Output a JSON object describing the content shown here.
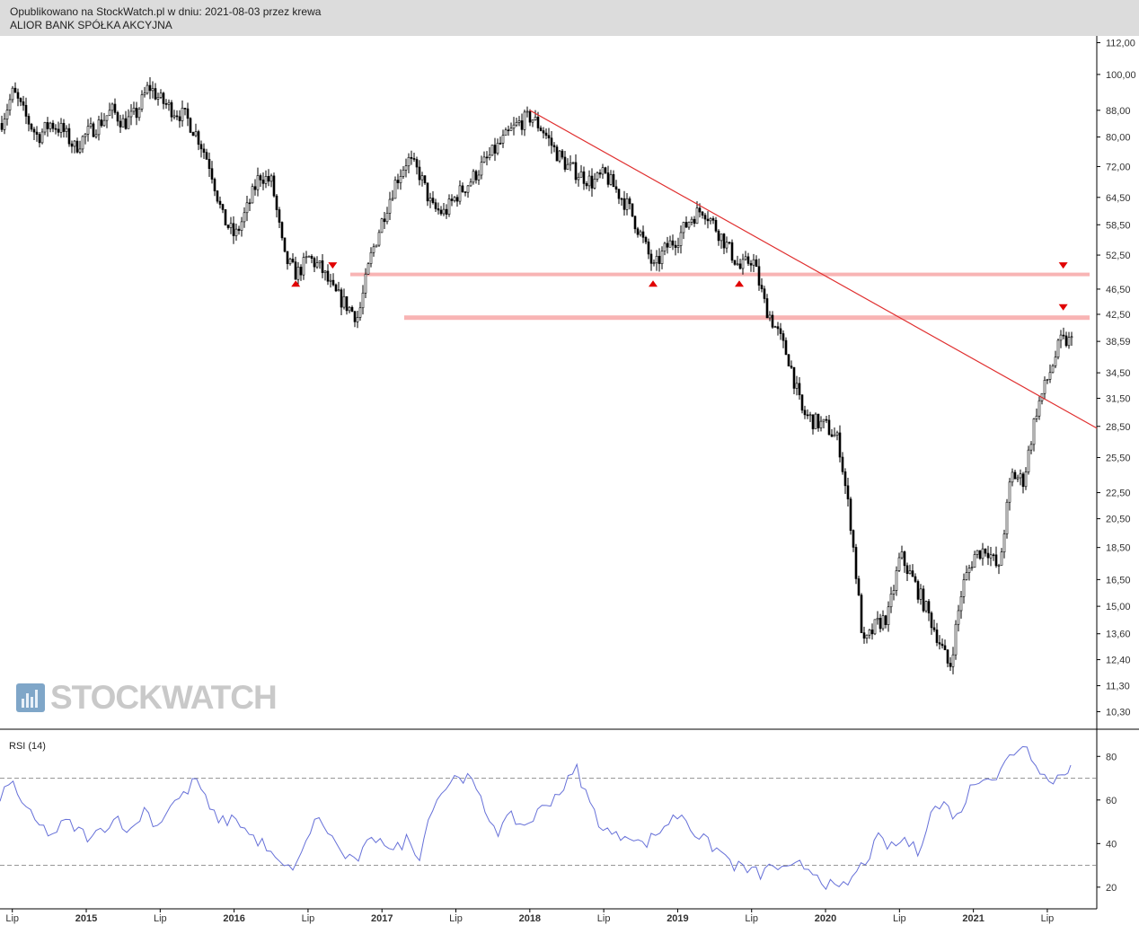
{
  "header": {
    "published": "Opublikowano na StockWatch.pl w dniu: 2021-08-03 przez krewa",
    "title": "ALIOR BANK SPÓŁKA AKCYJNA"
  },
  "logo": {
    "text": "STOCKWATCH",
    "icon": "bar-chart-icon"
  },
  "colors": {
    "trendline": "#e03030",
    "level": "#f8b4b4",
    "marker": "#e00000",
    "rsi": "#6670d8",
    "candle": "#000000"
  },
  "chart_data": [
    {
      "type": "candlestick",
      "scale": "log",
      "ylim": [
        9.8,
        114
      ],
      "y_ticks": [
        "112,00",
        "100,00",
        "88,00",
        "80,00",
        "72,00",
        "64,50",
        "58,50",
        "52,50",
        "46,50",
        "42,50",
        "38,59",
        "34,50",
        "31,50",
        "28,50",
        "25,50",
        "22,50",
        "20,50",
        "18,50",
        "16,50",
        "15,00",
        "13,60",
        "12,40",
        "11,30",
        "10,30"
      ],
      "x_ticks": [
        "Lip",
        "2015",
        "Lip",
        "2016",
        "Lip",
        "2017",
        "Lip",
        "2018",
        "Lip",
        "2019",
        "Lip",
        "2020",
        "Lip",
        "2021",
        "Lip"
      ],
      "weekly_close_path": [
        [
          "2014-06",
          84
        ],
        [
          "2014-07",
          94
        ],
        [
          "2014-08",
          86
        ],
        [
          "2014-09",
          80
        ],
        [
          "2014-10",
          84
        ],
        [
          "2014-11",
          82
        ],
        [
          "2014-12",
          77
        ],
        [
          "2015-01",
          81
        ],
        [
          "2015-02",
          84
        ],
        [
          "2015-03",
          88
        ],
        [
          "2015-04",
          84
        ],
        [
          "2015-05",
          87
        ],
        [
          "2015-06",
          96
        ],
        [
          "2015-07",
          91
        ],
        [
          "2015-08",
          88
        ],
        [
          "2015-09",
          86
        ],
        [
          "2015-10",
          80
        ],
        [
          "2015-11",
          72
        ],
        [
          "2015-12",
          60
        ],
        [
          "2016-01",
          56
        ],
        [
          "2016-02",
          62
        ],
        [
          "2016-03",
          70
        ],
        [
          "2016-04",
          68
        ],
        [
          "2016-05",
          52
        ],
        [
          "2016-06",
          49
        ],
        [
          "2016-07",
          52
        ],
        [
          "2016-08",
          50
        ],
        [
          "2016-09",
          46
        ],
        [
          "2016-10",
          44
        ],
        [
          "2016-11",
          42
        ],
        [
          "2016-12",
          52
        ],
        [
          "2017-01",
          60
        ],
        [
          "2017-02",
          68
        ],
        [
          "2017-03",
          74
        ],
        [
          "2017-04",
          70
        ],
        [
          "2017-05",
          62
        ],
        [
          "2017-06",
          61
        ],
        [
          "2017-07",
          65
        ],
        [
          "2017-08",
          68
        ],
        [
          "2017-09",
          72
        ],
        [
          "2017-10",
          76
        ],
        [
          "2017-11",
          80
        ],
        [
          "2017-12",
          84
        ],
        [
          "2018-01",
          86
        ],
        [
          "2018-02",
          82
        ],
        [
          "2018-03",
          76
        ],
        [
          "2018-04",
          72
        ],
        [
          "2018-05",
          70
        ],
        [
          "2018-06",
          68
        ],
        [
          "2018-07",
          70
        ],
        [
          "2018-08",
          66
        ],
        [
          "2018-09",
          62
        ],
        [
          "2018-10",
          56
        ],
        [
          "2018-11",
          50
        ],
        [
          "2018-12",
          54
        ],
        [
          "2019-01",
          56
        ],
        [
          "2019-02",
          60
        ],
        [
          "2019-03",
          62
        ],
        [
          "2019-04",
          58
        ],
        [
          "2019-05",
          54
        ],
        [
          "2019-06",
          50
        ],
        [
          "2019-07",
          52
        ],
        [
          "2019-08",
          44
        ],
        [
          "2019-09",
          40
        ],
        [
          "2019-10",
          36
        ],
        [
          "2019-11",
          30
        ],
        [
          "2019-12",
          29
        ],
        [
          "2020-01",
          28.5
        ],
        [
          "2020-02",
          27
        ],
        [
          "2020-03",
          20
        ],
        [
          "2020-04",
          13
        ],
        [
          "2020-05",
          14
        ],
        [
          "2020-06",
          14.5
        ],
        [
          "2020-07",
          18
        ],
        [
          "2020-08",
          16.5
        ],
        [
          "2020-09",
          15
        ],
        [
          "2020-10",
          13.5
        ],
        [
          "2020-11",
          12
        ],
        [
          "2020-12",
          16
        ],
        [
          "2021-01",
          18
        ],
        [
          "2021-02",
          18.5
        ],
        [
          "2021-03",
          17
        ],
        [
          "2021-04",
          24
        ],
        [
          "2021-05",
          23.5
        ],
        [
          "2021-06",
          30
        ],
        [
          "2021-07",
          34
        ],
        [
          "2021-08",
          38.59
        ]
      ],
      "horizontal_levels": [
        49.0,
        42.0
      ],
      "trendline": {
        "from": [
          "2018-01",
          88
        ],
        "to": [
          "2021-08",
          30.5
        ]
      },
      "markers": [
        {
          "date": "2016-06",
          "value": 47.5,
          "direction": "up"
        },
        {
          "date": "2016-09",
          "value": 50.5,
          "direction": "down"
        },
        {
          "date": "2018-11",
          "value": 47.5,
          "direction": "up"
        },
        {
          "date": "2019-06",
          "value": 47.5,
          "direction": "up"
        },
        {
          "date": "2021-08",
          "value": 50.5,
          "direction": "down"
        },
        {
          "date": "2021-08",
          "value": 43.5,
          "direction": "down"
        }
      ]
    },
    {
      "type": "line",
      "title": "RSI (14)",
      "ylim": [
        15,
        90
      ],
      "y_ticks": [
        "80",
        "60",
        "40",
        "20"
      ],
      "reference_levels": [
        70,
        30
      ],
      "values": [
        [
          0,
          62
        ],
        [
          3,
          68
        ],
        [
          6,
          55
        ],
        [
          9,
          48
        ],
        [
          12,
          44
        ],
        [
          15,
          50
        ],
        [
          18,
          46
        ],
        [
          21,
          42
        ],
        [
          24,
          48
        ],
        [
          27,
          52
        ],
        [
          30,
          45
        ],
        [
          33,
          56
        ],
        [
          36,
          48
        ],
        [
          39,
          58
        ],
        [
          42,
          62
        ],
        [
          45,
          70
        ],
        [
          48,
          55
        ],
        [
          51,
          50
        ],
        [
          54,
          52
        ],
        [
          57,
          44
        ],
        [
          60,
          40
        ],
        [
          63,
          32
        ],
        [
          66,
          28
        ],
        [
          69,
          34
        ],
        [
          72,
          52
        ],
        [
          75,
          46
        ],
        [
          78,
          36
        ],
        [
          81,
          31
        ],
        [
          84,
          39
        ],
        [
          87,
          44
        ],
        [
          90,
          36
        ],
        [
          93,
          42
        ],
        [
          96,
          35
        ],
        [
          99,
          58
        ],
        [
          102,
          66
        ],
        [
          105,
          72
        ],
        [
          108,
          68
        ],
        [
          111,
          55
        ],
        [
          114,
          46
        ],
        [
          117,
          52
        ],
        [
          120,
          48
        ],
        [
          123,
          54
        ],
        [
          126,
          60
        ],
        [
          129,
          66
        ],
        [
          132,
          74
        ],
        [
          135,
          58
        ],
        [
          138,
          47
        ],
        [
          141,
          43
        ],
        [
          144,
          45
        ],
        [
          147,
          39
        ],
        [
          150,
          44
        ],
        [
          153,
          50
        ],
        [
          156,
          54
        ],
        [
          159,
          45
        ],
        [
          162,
          40
        ],
        [
          165,
          36
        ],
        [
          168,
          30
        ],
        [
          171,
          28
        ],
        [
          174,
          26
        ],
        [
          177,
          30
        ],
        [
          180,
          27
        ],
        [
          183,
          30
        ],
        [
          186,
          28
        ],
        [
          189,
          22
        ],
        [
          192,
          18
        ],
        [
          195,
          24
        ],
        [
          198,
          32
        ],
        [
          201,
          42
        ],
        [
          204,
          38
        ],
        [
          207,
          42
        ],
        [
          210,
          36
        ],
        [
          213,
          55
        ],
        [
          216,
          58
        ],
        [
          219,
          52
        ],
        [
          222,
          65
        ],
        [
          225,
          72
        ],
        [
          228,
          70
        ],
        [
          231,
          80
        ],
        [
          234,
          86
        ],
        [
          237,
          78
        ],
        [
          240,
          68
        ],
        [
          243,
          72
        ],
        [
          245,
          76
        ]
      ]
    }
  ]
}
